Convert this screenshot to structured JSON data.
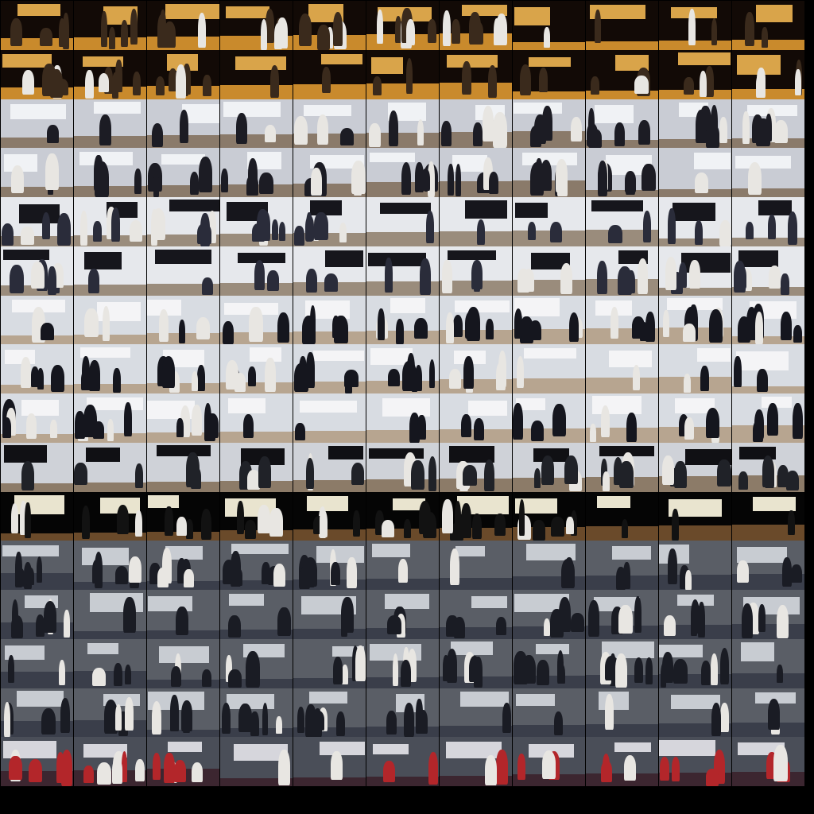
{
  "contact_sheet": {
    "columns": 11,
    "rows": 16,
    "row_themes": [
      "dance-stage",
      "dance-stage",
      "orchestra",
      "orchestra",
      "band-stage",
      "band-stage",
      "choir",
      "choir",
      "choir",
      "piano-hall",
      "piano-stage",
      "office-event",
      "office-event",
      "office-event",
      "office-event",
      "reception"
    ],
    "palette": {
      "dance-stage": {
        "bg": "#120a06",
        "floor": "#c98a2c",
        "panel": "#d9a44a",
        "fig": "#3a2a1c"
      },
      "orchestra": {
        "bg": "#c9ccd4",
        "floor": "#8a7a6a",
        "panel": "#f0f2f5",
        "fig": "#1c1c24"
      },
      "band-stage": {
        "bg": "#e6e8ec",
        "floor": "#9a8c7c",
        "panel": "#16161c",
        "fig": "#2a2c3a"
      },
      "choir": {
        "bg": "#d8dce2",
        "floor": "#b7a590",
        "panel": "#f4f4f6",
        "fig": "#15161e"
      },
      "piano-hall": {
        "bg": "#cfd2d8",
        "floor": "#8c7b68",
        "panel": "#101014",
        "fig": "#202228"
      },
      "piano-stage": {
        "bg": "#050505",
        "floor": "#6a4a2a",
        "panel": "#e9e4cf",
        "fig": "#121212"
      },
      "office-event": {
        "bg": "#5a5e66",
        "floor": "#3a3e4a",
        "panel": "#c8ccd2",
        "fig": "#1a1c24"
      },
      "reception": {
        "bg": "#4a4e58",
        "floor": "#3c2630",
        "panel": "#d6d6dc",
        "fig": "#b3262a"
      }
    }
  }
}
